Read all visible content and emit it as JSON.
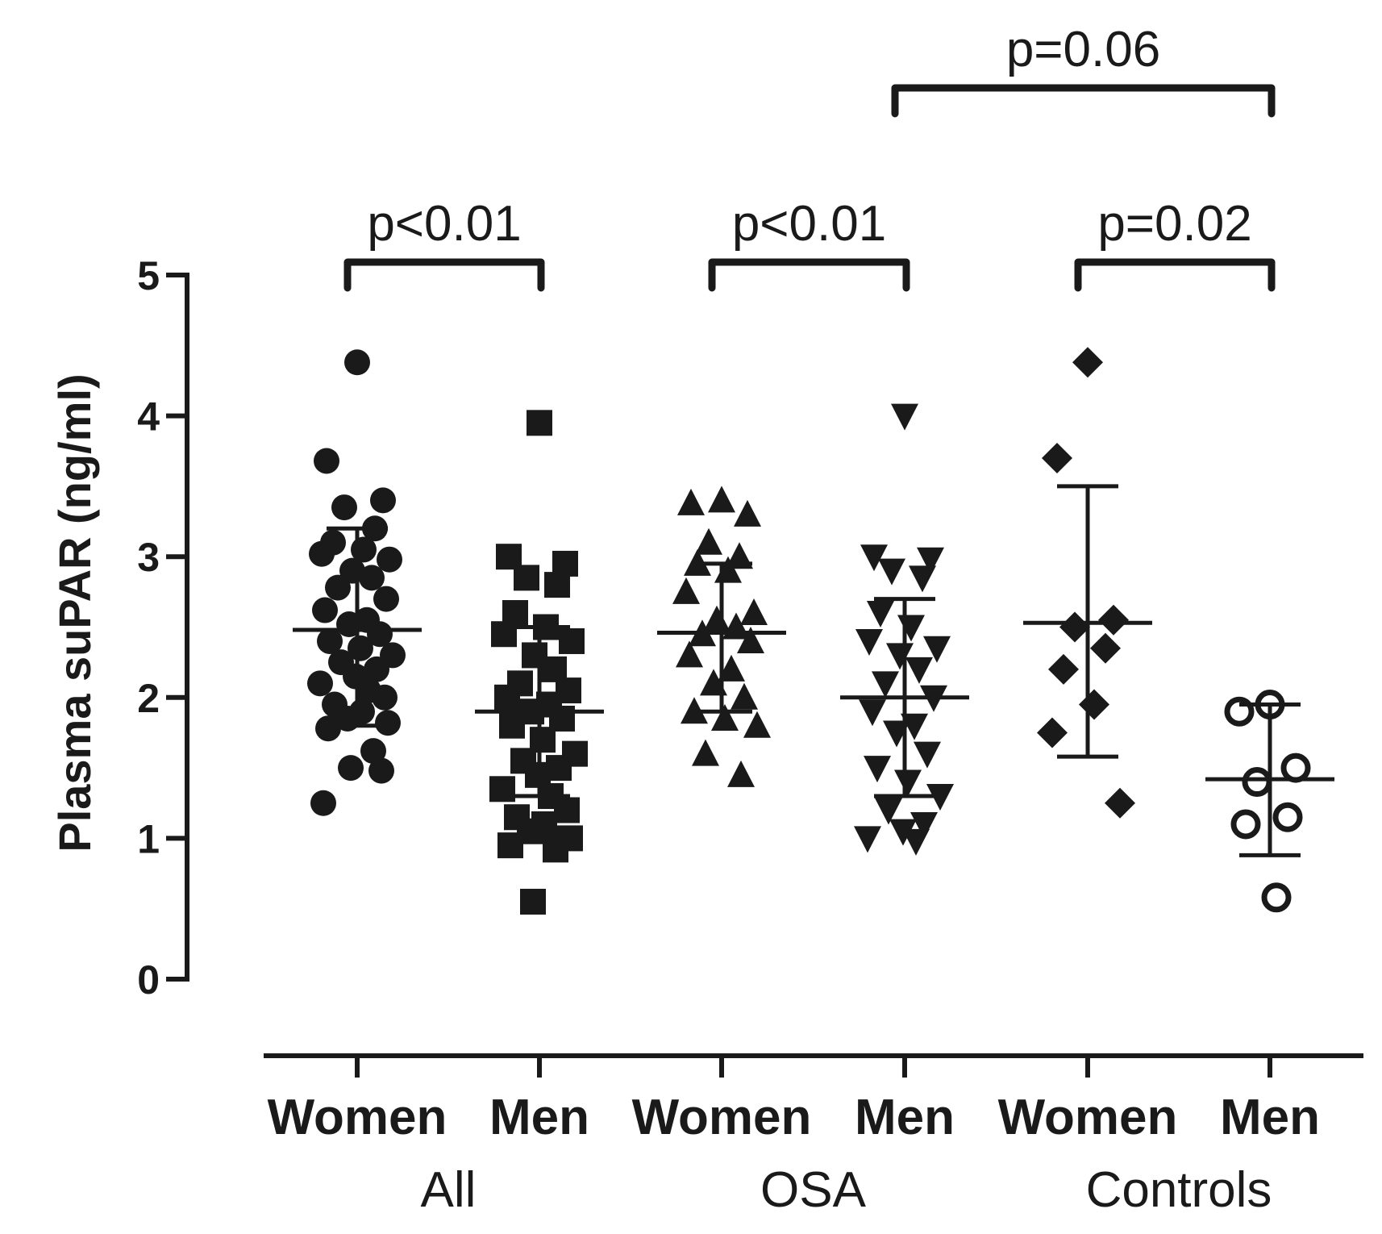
{
  "chart_data": {
    "type": "scatter",
    "ylabel": "Plasma suPAR (ng/ml)",
    "ylim": [
      0,
      5
    ],
    "yticks": [
      "0",
      "1",
      "2",
      "3",
      "4",
      "5"
    ],
    "groups": [
      {
        "name": "All",
        "categories": [
          "Women",
          "Men"
        ]
      },
      {
        "name": "OSA",
        "categories": [
          "Women",
          "Men"
        ]
      },
      {
        "name": "Controls",
        "categories": [
          "Women",
          "Men"
        ]
      }
    ],
    "series": [
      {
        "name": "All Women",
        "category": "Women",
        "group": "All",
        "marker": "circle",
        "mean": 2.48,
        "sd_low": 1.8,
        "sd_high": 3.2,
        "values": [
          4.38,
          3.68,
          3.4,
          3.35,
          3.2,
          3.1,
          3.05,
          3.02,
          2.98,
          2.9,
          2.85,
          2.78,
          2.7,
          2.62,
          2.55,
          2.52,
          2.45,
          2.4,
          2.35,
          2.3,
          2.25,
          2.2,
          2.15,
          2.1,
          2.05,
          2.0,
          1.95,
          1.9,
          1.85,
          1.82,
          1.78,
          1.62,
          1.5,
          1.48,
          1.25
        ]
      },
      {
        "name": "All Men",
        "category": "Men",
        "group": "All",
        "marker": "square",
        "mean": 1.9,
        "sd_low": 1.3,
        "sd_high": 2.5,
        "values": [
          3.95,
          3.0,
          2.95,
          2.85,
          2.8,
          2.6,
          2.5,
          2.45,
          2.4,
          2.3,
          2.2,
          2.1,
          2.05,
          2.0,
          1.95,
          1.9,
          1.85,
          1.8,
          1.7,
          1.6,
          1.55,
          1.5,
          1.45,
          1.35,
          1.3,
          1.2,
          1.15,
          1.1,
          1.05,
          1.0,
          0.95,
          0.92,
          0.55
        ]
      },
      {
        "name": "OSA Women",
        "category": "Women",
        "group": "OSA",
        "marker": "triangle-up",
        "mean": 2.46,
        "sd_low": 1.9,
        "sd_high": 2.95,
        "values": [
          3.4,
          3.38,
          3.3,
          3.1,
          3.0,
          2.95,
          2.9,
          2.75,
          2.6,
          2.55,
          2.5,
          2.45,
          2.4,
          2.3,
          2.2,
          2.1,
          2.0,
          1.9,
          1.85,
          1.8,
          1.6,
          1.45
        ]
      },
      {
        "name": "OSA Men",
        "category": "Men",
        "group": "OSA",
        "marker": "triangle-down",
        "mean": 2.0,
        "sd_low": 1.3,
        "sd_high": 2.7,
        "values": [
          4.0,
          3.0,
          2.98,
          2.9,
          2.85,
          2.6,
          2.5,
          2.4,
          2.35,
          2.3,
          2.2,
          2.1,
          2.0,
          1.9,
          1.8,
          1.75,
          1.6,
          1.5,
          1.4,
          1.3,
          1.2,
          1.1,
          1.05,
          1.0,
          0.98
        ]
      },
      {
        "name": "Controls Women",
        "category": "Women",
        "group": "Controls",
        "marker": "diamond",
        "mean": 2.53,
        "sd_low": 1.58,
        "sd_high": 3.5,
        "values": [
          4.38,
          3.7,
          2.55,
          2.5,
          2.35,
          2.2,
          1.95,
          1.75,
          1.25
        ]
      },
      {
        "name": "Controls Men",
        "category": "Men",
        "group": "Controls",
        "marker": "circle-open",
        "mean": 1.42,
        "sd_low": 0.88,
        "sd_high": 1.95,
        "values": [
          1.95,
          1.9,
          1.5,
          1.4,
          1.15,
          1.1,
          0.58
        ]
      }
    ],
    "comparisons": [
      {
        "label": "p<0.01",
        "from": 0,
        "to": 1,
        "level": 1
      },
      {
        "label": "p<0.01",
        "from": 2,
        "to": 3,
        "level": 1
      },
      {
        "label": "p=0.02",
        "from": 4,
        "to": 5,
        "level": 1
      },
      {
        "label": "p=0.06",
        "from": 3,
        "to": 5,
        "level": 2
      }
    ]
  }
}
